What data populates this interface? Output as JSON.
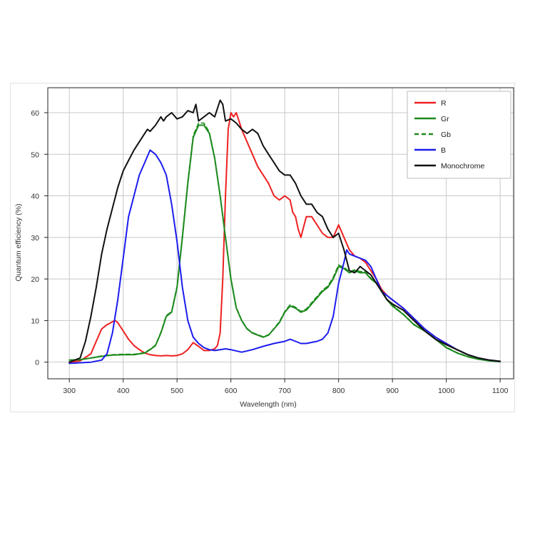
{
  "chart_data": {
    "type": "line",
    "title": "",
    "xlabel": "Wavelength (nm)",
    "ylabel": "Quantum efficiency (%)",
    "xlim": [
      260,
      1125
    ],
    "ylim": [
      -4,
      66
    ],
    "xticks": [
      300,
      400,
      500,
      600,
      700,
      800,
      900,
      1000,
      1100
    ],
    "yticks": [
      0,
      10,
      20,
      30,
      40,
      50,
      60
    ],
    "grid": true,
    "legend_position": "top-right",
    "series": [
      {
        "name": "R",
        "color": "#ee2020",
        "style": "solid",
        "x": [
          300,
          320,
          340,
          350,
          360,
          370,
          380,
          385,
          390,
          400,
          410,
          420,
          430,
          440,
          450,
          460,
          470,
          480,
          490,
          500,
          510,
          520,
          530,
          540,
          550,
          560,
          570,
          575,
          580,
          585,
          590,
          595,
          600,
          605,
          610,
          615,
          620,
          630,
          640,
          650,
          660,
          670,
          680,
          690,
          700,
          710,
          715,
          720,
          725,
          730,
          740,
          750,
          760,
          770,
          780,
          790,
          800,
          810,
          820,
          830,
          840,
          850,
          860,
          870,
          880,
          890,
          900,
          920,
          940,
          960,
          980,
          1000,
          1020,
          1040,
          1060,
          1080,
          1100
        ],
        "y": [
          0,
          0.3,
          2,
          5,
          8,
          9,
          9.7,
          10,
          9.5,
          7.5,
          5.5,
          4,
          3,
          2.2,
          1.8,
          1.6,
          1.5,
          1.6,
          1.5,
          1.6,
          2,
          3,
          4.7,
          3.8,
          2.8,
          2.8,
          3.2,
          4,
          7,
          20,
          40,
          56,
          60,
          59,
          60,
          58,
          56,
          53,
          50,
          47,
          45,
          43,
          40,
          39,
          40,
          39,
          36,
          35,
          32,
          30,
          35,
          35,
          33,
          31,
          30,
          30,
          33,
          30,
          27,
          25.5,
          25,
          24,
          22,
          20,
          17.5,
          16,
          15,
          13,
          10.5,
          8,
          6,
          4.5,
          3,
          1.8,
          1,
          0.5,
          0.2
        ]
      },
      {
        "name": "Gr",
        "color": "#1c8a1c",
        "style": "solid",
        "x": [
          300,
          320,
          340,
          360,
          380,
          400,
          420,
          440,
          450,
          460,
          470,
          480,
          490,
          500,
          510,
          520,
          530,
          540,
          550,
          560,
          570,
          580,
          590,
          600,
          610,
          620,
          630,
          640,
          650,
          660,
          670,
          680,
          690,
          700,
          710,
          720,
          730,
          740,
          750,
          760,
          770,
          780,
          790,
          800,
          810,
          820,
          830,
          840,
          850,
          860,
          870,
          880,
          890,
          900,
          920,
          940,
          960,
          980,
          1000,
          1020,
          1040,
          1060,
          1080,
          1100
        ],
        "y": [
          0.5,
          0.6,
          1,
          1.4,
          1.7,
          1.8,
          1.8,
          2.2,
          3,
          4,
          7,
          11,
          12,
          18,
          30,
          43,
          54,
          57,
          57,
          55,
          49,
          40,
          30,
          20,
          13,
          10,
          8,
          7,
          6.5,
          6,
          6.5,
          8,
          9.5,
          12,
          13.5,
          13,
          12,
          12.5,
          14,
          15.5,
          17,
          18,
          20,
          23,
          22.5,
          21.5,
          22,
          21.5,
          21.5,
          20,
          19,
          17,
          15,
          13.5,
          11.5,
          9,
          7.5,
          5.5,
          3.5,
          2.2,
          1.3,
          0.7,
          0.3,
          0.1
        ]
      },
      {
        "name": "Gb",
        "color": "#1c8a1c",
        "style": "dashed",
        "x": [
          300,
          320,
          340,
          360,
          380,
          400,
          420,
          440,
          450,
          460,
          470,
          480,
          490,
          500,
          510,
          520,
          530,
          540,
          550,
          560,
          570,
          580,
          590,
          600,
          610,
          620,
          630,
          640,
          650,
          660,
          670,
          680,
          690,
          700,
          710,
          720,
          730,
          740,
          750,
          760,
          770,
          780,
          790,
          800,
          810,
          820,
          830,
          840,
          850,
          860,
          870,
          880,
          890,
          900,
          920,
          940,
          960,
          980,
          1000,
          1020,
          1040,
          1060,
          1080,
          1100
        ],
        "y": [
          0.5,
          0.6,
          1,
          1.5,
          1.8,
          1.9,
          1.9,
          2.3,
          3.1,
          4.1,
          7.2,
          11.2,
          12.2,
          18.3,
          30.5,
          43.5,
          54.5,
          57.5,
          57.5,
          55.3,
          49.2,
          40.2,
          30.2,
          20.2,
          13.2,
          10.1,
          8.1,
          7.1,
          6.6,
          6.1,
          6.6,
          8.1,
          9.7,
          12.2,
          13.8,
          13.2,
          12.2,
          12.8,
          14.3,
          15.8,
          17.3,
          18.3,
          20.4,
          23.4,
          22.8,
          21.8,
          22.2,
          21.8,
          21.7,
          20.2,
          19.2,
          17.2,
          15.2,
          13.7,
          11.6,
          9.1,
          7.6,
          5.6,
          3.6,
          2.3,
          1.4,
          0.8,
          0.4,
          0.1
        ]
      },
      {
        "name": "B",
        "color": "#1c1cee",
        "style": "solid",
        "x": [
          300,
          340,
          360,
          370,
          380,
          390,
          400,
          410,
          420,
          430,
          440,
          450,
          460,
          470,
          480,
          490,
          500,
          510,
          520,
          530,
          540,
          550,
          560,
          570,
          580,
          590,
          600,
          620,
          640,
          660,
          680,
          700,
          710,
          720,
          730,
          740,
          760,
          770,
          780,
          790,
          800,
          810,
          815,
          820,
          830,
          840,
          850,
          860,
          870,
          880,
          890,
          900,
          920,
          940,
          960,
          980,
          1000,
          1020,
          1040,
          1060,
          1080,
          1100
        ],
        "y": [
          -0.3,
          0,
          0.5,
          2,
          7,
          15,
          25,
          35,
          40,
          45,
          48,
          51,
          50,
          48,
          45,
          38,
          29,
          18,
          10,
          6,
          4.5,
          3.5,
          3,
          2.8,
          3,
          3.2,
          3,
          2.4,
          3,
          3.8,
          4.5,
          5,
          5.5,
          5,
          4.5,
          4.5,
          5,
          5.5,
          7,
          11,
          19,
          24,
          27,
          26,
          25.5,
          25,
          24.5,
          23,
          20,
          17,
          16,
          15,
          13,
          10.5,
          8,
          6,
          4.5,
          3,
          1.8,
          1,
          0.5,
          0.2
        ]
      },
      {
        "name": "Monochrome",
        "color": "#111111",
        "style": "solid",
        "x": [
          300,
          310,
          320,
          330,
          340,
          350,
          360,
          370,
          380,
          390,
          400,
          410,
          420,
          430,
          440,
          445,
          450,
          460,
          470,
          475,
          480,
          490,
          500,
          510,
          520,
          530,
          535,
          540,
          550,
          560,
          570,
          580,
          585,
          590,
          600,
          610,
          620,
          630,
          640,
          650,
          660,
          670,
          680,
          690,
          700,
          710,
          720,
          730,
          740,
          750,
          760,
          770,
          780,
          790,
          800,
          810,
          820,
          830,
          840,
          850,
          860,
          870,
          880,
          890,
          900,
          920,
          940,
          960,
          980,
          1000,
          1020,
          1040,
          1060,
          1080,
          1100
        ],
        "y": [
          0,
          0.5,
          1,
          5,
          11,
          18,
          26,
          32,
          37,
          42,
          46,
          48.5,
          51,
          53,
          55,
          56,
          55.5,
          57,
          59,
          58,
          59,
          60,
          58.5,
          59,
          60.5,
          60,
          62,
          58,
          59,
          60,
          59,
          63,
          62,
          58,
          58.5,
          57.5,
          56,
          55,
          56,
          55,
          52,
          50,
          48,
          46,
          45,
          45,
          43,
          40,
          38,
          38,
          36,
          35,
          32,
          30,
          31,
          27,
          22,
          21.5,
          23,
          22,
          21,
          19,
          17,
          15,
          14,
          12.5,
          10,
          7.5,
          5.5,
          4.2,
          3,
          1.8,
          1,
          0.5,
          0.2
        ]
      }
    ]
  }
}
